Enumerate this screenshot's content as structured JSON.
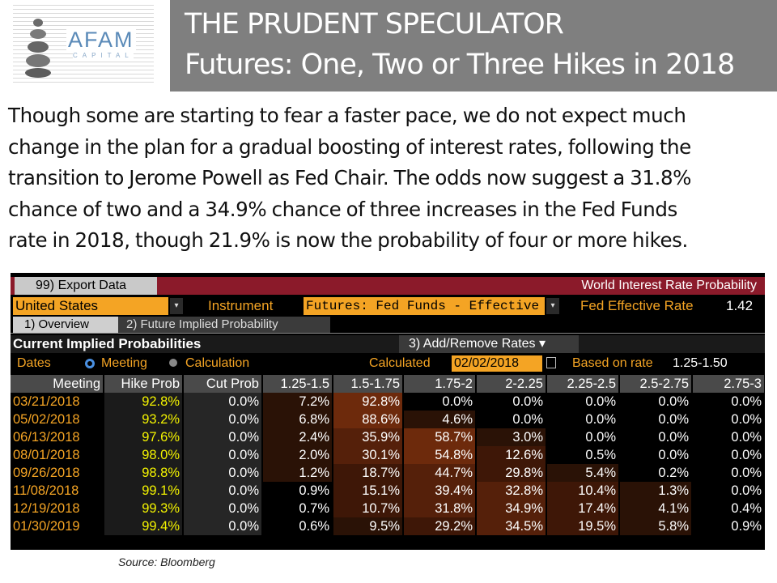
{
  "header": {
    "logo_text": "AFAM",
    "logo_subtext": "CAPITAL",
    "title_line1": "THE PRUDENT SPECULATOR",
    "title_line2": "Futures: One, Two or Three Hikes in 2018"
  },
  "paragraph": {
    "line1": "Though some are starting to fear a faster pace, we do not expect much",
    "line2": "change in the plan for a gradual boosting of interest rates, following the",
    "line3": "transition to Jerome Powell as Fed Chair. The odds now suggest a 31.8%",
    "line4": "chance of two and a 34.9% chance of three increases in the Fed Funds",
    "line5": "rate in 2018, though 21.9% is now the probability of four or more hikes."
  },
  "terminal": {
    "export_button": "99) Export Data",
    "screen_title": "World Interest Rate Probability",
    "country": "United States",
    "instrument_label": "Instrument",
    "instrument_value": "Futures: Fed Funds - Effective",
    "fed_rate_label": "Fed Effective Rate",
    "fed_rate_value": "1.42",
    "tab1": "1) Overview",
    "tab2": "2) Future Implied Probability",
    "section_title": "Current Implied Probabilities",
    "add_remove": "3) Add/Remove Rates",
    "dates_label": "Dates",
    "radio_meeting": "Meeting",
    "radio_calculation": "Calculation",
    "calculated_label": "Calculated",
    "calculated_value": "02/02/2018",
    "based_on_label": "Based on rate",
    "based_on_value": "1.25-1.50"
  },
  "chart_data": {
    "type": "table",
    "title": "Current Implied Probabilities",
    "columns": [
      "Meeting",
      "Hike Prob",
      "Cut Prob",
      "1.25-1.5",
      "1.5-1.75",
      "1.75-2",
      "2-2.25",
      "2.25-2.5",
      "2.5-2.75",
      "2.75-3"
    ],
    "rows": [
      [
        "03/21/2018",
        "92.8%",
        "0.0%",
        "7.2%",
        "92.8%",
        "0.0%",
        "0.0%",
        "0.0%",
        "0.0%",
        "0.0%"
      ],
      [
        "05/02/2018",
        "93.2%",
        "0.0%",
        "6.8%",
        "88.6%",
        "4.6%",
        "0.0%",
        "0.0%",
        "0.0%",
        "0.0%"
      ],
      [
        "06/13/2018",
        "97.6%",
        "0.0%",
        "2.4%",
        "35.9%",
        "58.7%",
        "3.0%",
        "0.0%",
        "0.0%",
        "0.0%"
      ],
      [
        "08/01/2018",
        "98.0%",
        "0.0%",
        "2.0%",
        "30.1%",
        "54.8%",
        "12.6%",
        "0.5%",
        "0.0%",
        "0.0%"
      ],
      [
        "09/26/2018",
        "98.8%",
        "0.0%",
        "1.2%",
        "18.7%",
        "44.7%",
        "29.8%",
        "5.4%",
        "0.2%",
        "0.0%"
      ],
      [
        "11/08/2018",
        "99.1%",
        "0.0%",
        "0.9%",
        "15.1%",
        "39.4%",
        "32.8%",
        "10.4%",
        "1.3%",
        "0.0%"
      ],
      [
        "12/19/2018",
        "99.3%",
        "0.0%",
        "0.7%",
        "10.7%",
        "31.8%",
        "34.9%",
        "17.4%",
        "4.1%",
        "0.4%"
      ],
      [
        "01/30/2019",
        "99.4%",
        "0.0%",
        "0.6%",
        "9.5%",
        "29.2%",
        "34.5%",
        "19.5%",
        "5.8%",
        "0.9%"
      ]
    ]
  },
  "source": "Source: Bloomberg"
}
